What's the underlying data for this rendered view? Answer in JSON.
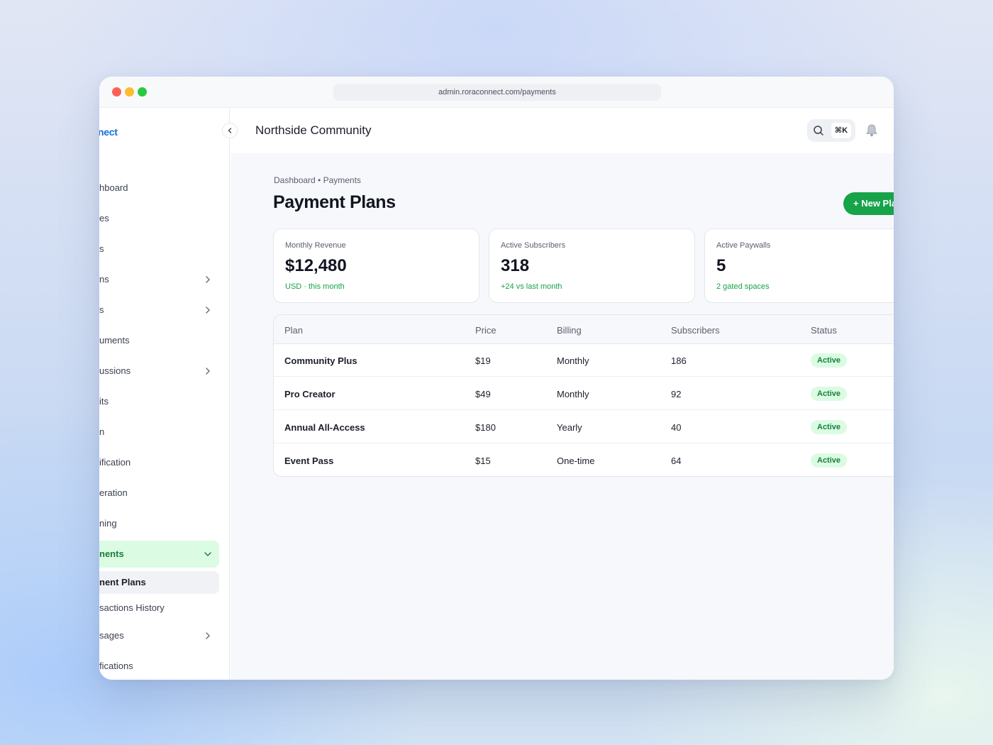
{
  "browser": {
    "url": "admin.roraconnect.com/payments"
  },
  "sidebar": {
    "logo": "nect",
    "items": [
      {
        "label": "hboard",
        "chevron": false
      },
      {
        "label": "es",
        "chevron": false
      },
      {
        "label": "s",
        "chevron": false
      },
      {
        "label": "ns",
        "chevron": true
      },
      {
        "label": "s",
        "chevron": true
      },
      {
        "label": "uments",
        "chevron": false
      },
      {
        "label": "ussions",
        "chevron": true
      },
      {
        "label": "its",
        "chevron": false
      },
      {
        "label": "n",
        "chevron": false
      },
      {
        "label": "ification",
        "chevron": false
      },
      {
        "label": "eration",
        "chevron": false
      },
      {
        "label": "ning",
        "chevron": false
      }
    ],
    "active_item": "nents",
    "sub_items": [
      "nent Plans",
      "sactions History"
    ],
    "bottom_items": [
      {
        "label": "sages",
        "chevron": true
      },
      {
        "label": "fications",
        "chevron": false
      }
    ]
  },
  "topbar": {
    "org_name": "Northside Community",
    "shortcut": "⌘K"
  },
  "main": {
    "breadcrumb": "Dashboard • Payments",
    "title": "Payment Plans",
    "new_button": "+ New Plan"
  },
  "stats": [
    {
      "label": "Monthly Revenue",
      "value": "$12,480",
      "sub": "USD · this month"
    },
    {
      "label": "Active Subscribers",
      "value": "318",
      "sub": "+24 vs last month"
    },
    {
      "label": "Active Paywalls",
      "value": "5",
      "sub": "2 gated spaces"
    }
  ],
  "table": {
    "columns": [
      "Plan",
      "Price",
      "Billing",
      "Subscribers",
      "Status"
    ],
    "rows": [
      {
        "plan": "Community Plus",
        "price": "$19",
        "billing": "Monthly",
        "subscribers": "186",
        "status": "Active"
      },
      {
        "plan": "Pro Creator",
        "price": "$49",
        "billing": "Monthly",
        "subscribers": "92",
        "status": "Active"
      },
      {
        "plan": "Annual All-Access",
        "price": "$180",
        "billing": "Yearly",
        "subscribers": "40",
        "status": "Active"
      },
      {
        "plan": "Event Pass",
        "price": "$15",
        "billing": "One-time",
        "subscribers": "64",
        "status": "Active"
      }
    ]
  },
  "colors": {
    "accent_green": "#16a34a",
    "brand_blue": "#1672d4",
    "active_bg": "#dcfbe3"
  }
}
